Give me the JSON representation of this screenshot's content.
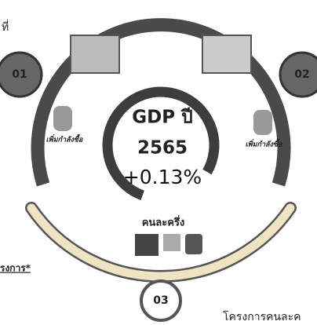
{
  "center": {
    "title": "GDP ปี",
    "year": "2565",
    "change": "+0.13%"
  },
  "badges": [
    "01",
    "02",
    "03"
  ],
  "labels": {
    "left_icon": "เพิ่มกำลังซื้อ",
    "right_icon": "เพิ่มกำลังซื้อ",
    "bottom": "คนละครึ่ง"
  },
  "side_notes": {
    "top_left": "ที่",
    "left": "รงการ*",
    "bottom_right": "โครงการคนละค"
  }
}
